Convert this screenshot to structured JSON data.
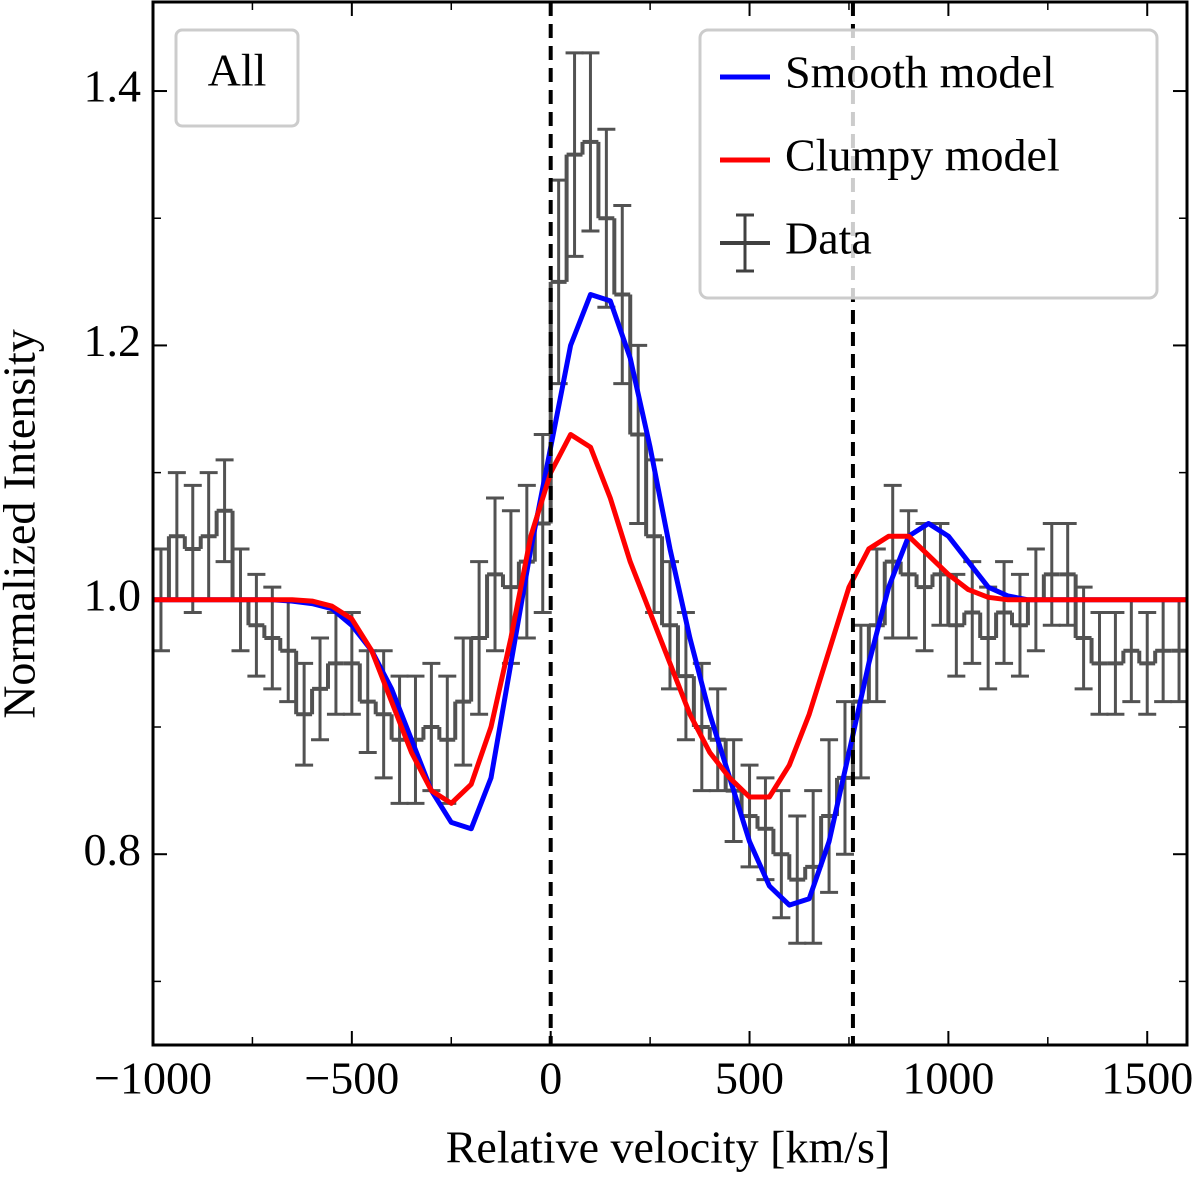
{
  "chart_data": {
    "type": "step-errorbar-line",
    "annotation": "All",
    "xlabel": "Relative velocity [km/s]",
    "ylabel": "Normalized Intensity",
    "xlim": [
      -1000,
      1600
    ],
    "ylim": [
      0.65,
      1.47
    ],
    "xticks": [
      {
        "value": -1000,
        "label": "−1000"
      },
      {
        "value": -500,
        "label": "−500"
      },
      0,
      500,
      1000,
      1500
    ],
    "xminorticks": [
      -750,
      -250,
      250,
      750,
      1250
    ],
    "yticks": [
      0.8,
      {
        "value": 1,
        "label": "1.0"
      },
      1.2,
      1.4
    ],
    "yminorticks": [
      0.7,
      0.9,
      1.1,
      1.3
    ],
    "vlines": [
      0,
      760
    ],
    "legend": "upper right",
    "data": {
      "name": "Data",
      "color": "#404040",
      "x": [
        -980,
        -940,
        -900,
        -860,
        -820,
        -780,
        -740,
        -700,
        -660,
        -620,
        -580,
        -540,
        -500,
        -460,
        -420,
        -380,
        -340,
        -300,
        -260,
        -220,
        -180,
        -140,
        -100,
        -60,
        -20,
        20,
        60,
        100,
        140,
        180,
        220,
        260,
        300,
        340,
        380,
        420,
        460,
        500,
        540,
        580,
        620,
        660,
        700,
        740,
        780,
        820,
        860,
        900,
        940,
        980,
        1020,
        1060,
        1100,
        1140,
        1180,
        1220,
        1260,
        1300,
        1340,
        1380,
        1420,
        1460,
        1500,
        1540,
        1580
      ],
      "values": [
        1.0,
        1.05,
        1.04,
        1.05,
        1.07,
        1.0,
        0.98,
        0.97,
        0.96,
        0.91,
        0.93,
        0.95,
        0.95,
        0.92,
        0.91,
        0.89,
        0.89,
        0.9,
        0.89,
        0.92,
        0.97,
        1.02,
        1.01,
        1.03,
        1.06,
        1.25,
        1.35,
        1.36,
        1.3,
        1.24,
        1.13,
        1.05,
        0.98,
        0.94,
        0.9,
        0.89,
        0.85,
        0.83,
        0.82,
        0.8,
        0.78,
        0.79,
        0.83,
        0.86,
        0.92,
        0.98,
        1.03,
        1.02,
        1.01,
        1.02,
        0.98,
        0.99,
        0.97,
        0.99,
        0.98,
        1.0,
        1.02,
        1.02,
        0.97,
        0.95,
        0.95,
        0.96,
        0.95,
        0.96,
        0.96
      ],
      "errors": [
        0.04,
        0.05,
        0.05,
        0.05,
        0.04,
        0.04,
        0.04,
        0.04,
        0.04,
        0.04,
        0.04,
        0.04,
        0.04,
        0.04,
        0.05,
        0.05,
        0.05,
        0.05,
        0.05,
        0.05,
        0.06,
        0.06,
        0.06,
        0.06,
        0.07,
        0.08,
        0.08,
        0.07,
        0.07,
        0.07,
        0.07,
        0.06,
        0.05,
        0.05,
        0.05,
        0.04,
        0.04,
        0.04,
        0.04,
        0.05,
        0.05,
        0.06,
        0.06,
        0.06,
        0.06,
        0.06,
        0.06,
        0.05,
        0.05,
        0.04,
        0.04,
        0.04,
        0.04,
        0.04,
        0.04,
        0.04,
        0.04,
        0.04,
        0.04,
        0.04,
        0.04,
        0.04,
        0.04,
        0.04,
        0.04
      ]
    },
    "series": [
      {
        "name": "Smooth model",
        "color": "#0000ff",
        "x": [
          -1000,
          -950,
          -900,
          -850,
          -800,
          -750,
          -700,
          -650,
          -600,
          -550,
          -500,
          -450,
          -400,
          -350,
          -300,
          -250,
          -200,
          -150,
          -100,
          -50,
          0,
          50,
          100,
          150,
          200,
          250,
          300,
          350,
          400,
          450,
          500,
          550,
          600,
          650,
          700,
          750,
          800,
          850,
          900,
          950,
          1000,
          1050,
          1100,
          1150,
          1200,
          1250,
          1300,
          1350,
          1400,
          1450,
          1500,
          1550,
          1600
        ],
        "values": [
          1.0,
          1.0,
          1.0,
          1.0,
          1.0,
          1.0,
          1.0,
          0.999,
          0.997,
          0.993,
          0.98,
          0.96,
          0.93,
          0.89,
          0.85,
          0.825,
          0.82,
          0.86,
          0.95,
          1.04,
          1.12,
          1.2,
          1.24,
          1.235,
          1.19,
          1.12,
          1.04,
          0.97,
          0.91,
          0.86,
          0.81,
          0.775,
          0.76,
          0.765,
          0.81,
          0.88,
          0.95,
          1.01,
          1.05,
          1.06,
          1.05,
          1.03,
          1.01,
          1.003,
          1.0,
          1.0,
          1.0,
          1.0,
          1.0,
          1.0,
          1.0,
          1.0,
          1.0
        ]
      },
      {
        "name": "Clumpy model",
        "color": "#ff0000",
        "x": [
          -1000,
          -950,
          -900,
          -850,
          -800,
          -750,
          -700,
          -650,
          -600,
          -550,
          -500,
          -450,
          -400,
          -350,
          -300,
          -250,
          -200,
          -150,
          -100,
          -50,
          0,
          50,
          100,
          150,
          200,
          250,
          300,
          350,
          400,
          450,
          500,
          550,
          600,
          650,
          700,
          750,
          800,
          850,
          900,
          950,
          1000,
          1050,
          1100,
          1150,
          1200,
          1250,
          1300,
          1350,
          1400,
          1450,
          1500,
          1550,
          1600
        ],
        "values": [
          1.0,
          1.0,
          1.0,
          1.0,
          1.0,
          1.0,
          1.0,
          1.0,
          0.999,
          0.995,
          0.985,
          0.96,
          0.92,
          0.88,
          0.85,
          0.84,
          0.855,
          0.9,
          0.97,
          1.05,
          1.1,
          1.13,
          1.12,
          1.08,
          1.03,
          0.99,
          0.95,
          0.91,
          0.88,
          0.86,
          0.845,
          0.845,
          0.87,
          0.91,
          0.96,
          1.01,
          1.04,
          1.05,
          1.05,
          1.035,
          1.02,
          1.008,
          1.002,
          1.0,
          1.0,
          1.0,
          1.0,
          1.0,
          1.0,
          1.0,
          1.0,
          1.0,
          1.0
        ]
      }
    ]
  }
}
